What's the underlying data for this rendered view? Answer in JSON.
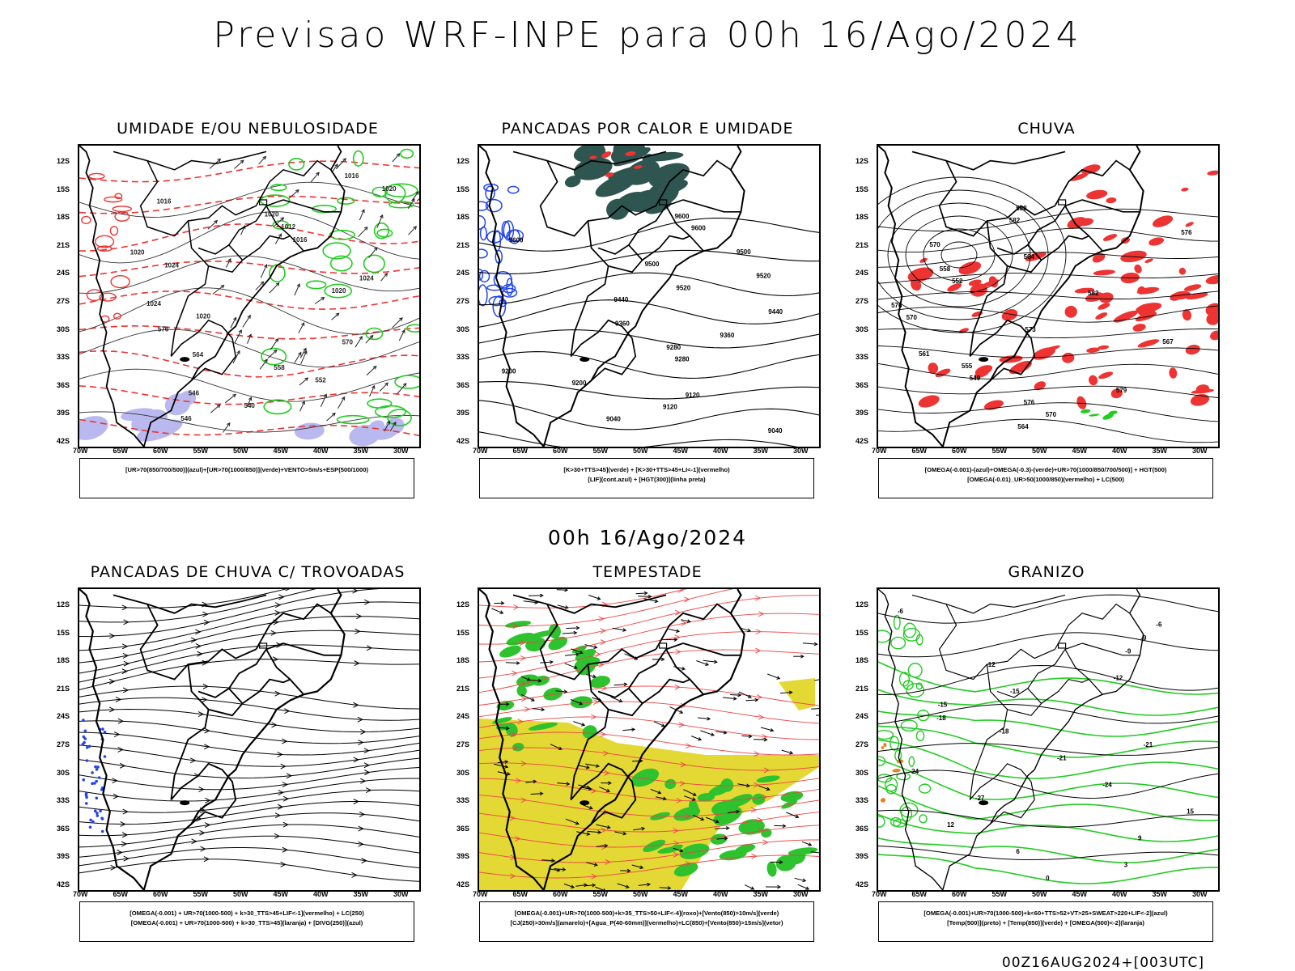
{
  "page": {
    "main_title": "Previsao WRF-INPE  para 00h 16/Ago/2024",
    "mid_title": "00h 16/Ago/2024",
    "footer": "00Z16AUG2024+[003UTC]"
  },
  "axes": {
    "lat_labels": [
      "12S",
      "15S",
      "18S",
      "21S",
      "24S",
      "27S",
      "30S",
      "33S",
      "36S",
      "39S",
      "42S"
    ],
    "lon_labels": [
      "70W",
      "65W",
      "60W",
      "55W",
      "50W",
      "45W",
      "40W",
      "35W",
      "30W"
    ]
  },
  "colors": {
    "black": "#000000",
    "red": "#ee3333",
    "green": "#22cc22",
    "blue": "#2244ee",
    "lavender": "#b9b9ef",
    "darkteal": "#2f5550",
    "yellow": "#e4d835",
    "brightgreen": "#2ec22e",
    "orange": "#e8801f"
  },
  "panels": [
    {
      "id": "umidade",
      "title": "UMIDADE E/OU NEBULOSIDADE",
      "legend": [
        "[UR>70(850/700/500)](azul)+[UR>70(1000/850)](verde)+VENTO>5m/s+ESP(500/1000)"
      ],
      "contour_labels": [
        "1016",
        "1020",
        "1016",
        "1020",
        "1012",
        "1016",
        "1020",
        "1024",
        "1024",
        "1020",
        "1024",
        "1020",
        "576",
        "570",
        "564",
        "558",
        "552",
        "546",
        "540",
        "546"
      ]
    },
    {
      "id": "pancadas-calor",
      "title": "PANCADAS POR CALOR E UMIDADE",
      "legend": [
        "[K>30+TTS>45](verde) + [K>30+TTS>45+LI<-1](vermelho)",
        "[LIF](cont.azul) + [HGT(300)](linha preta)"
      ],
      "contour_labels": [
        "9600",
        "9600",
        "9600",
        "9500",
        "9500",
        "9520",
        "9520",
        "9440",
        "9440",
        "9360",
        "9360",
        "9280",
        "9280",
        "9200",
        "9200",
        "9120",
        "9120",
        "9040",
        "9040"
      ]
    },
    {
      "id": "chuva",
      "title": "CHUVA",
      "legend": [
        "[OMEGA(-0.001)-(azul)+OMEGA(-0.3)-(verde)+UR>70(1000/850/700/500)] + HGT(500)",
        "[OMEGA(-0.01)_UR>50(1000/850)(vermelho) + LC(500)"
      ],
      "contour_labels": [
        "588",
        "582",
        "576",
        "570",
        "564",
        "558",
        "552",
        "582",
        "576",
        "570",
        "573",
        "567",
        "561",
        "555",
        "549",
        "579",
        "576",
        "570",
        "564"
      ]
    },
    {
      "id": "pancadas-trovoadas",
      "title": "PANCADAS DE CHUVA C/ TROVOADAS",
      "legend": [
        "[OMEGA(-0.001) + UR>70(1000-500) + k>30_TTS>45+LIF<-1](vermelho) + LC(250)",
        "[OMEGA(-0.001) + UR>70(1000-500) + k>30_TTS>45](laranja) + [DIVG(250)](azul)"
      ],
      "contour_labels": []
    },
    {
      "id": "tempestade",
      "title": "TEMPESTADE",
      "legend": [
        "[OMEGA(-0.001)+UR>70(1000-500)+k>35_TTS>50+LIF<-4](roxo)+[Vento(850)>10m/s](verde)",
        "[CJ(250)>30m/s](amarelo)+[Agua_P(40-60mm)](vermelho)+LC(850)+[Vento(850)>15m/s](vetor)"
      ],
      "contour_labels": []
    },
    {
      "id": "granizo",
      "title": "GRANIZO",
      "legend": [
        "[OMEGA(-0.001)+UR>70(1000-500)+k<60+TTS>52+VT>25+SWEAT>220+LIF<-2](azul)",
        "[Temp(500)](preto) + [Temp(850)](verde) + [OMEGA(500)<-2](laranja)"
      ],
      "contour_labels": [
        "-6",
        "-6",
        "-9",
        "-9",
        "-12",
        "-12",
        "-15",
        "-15",
        "-18",
        "-18",
        "-21",
        "-21",
        "-24",
        "-24",
        "-27",
        "15",
        "12",
        "9",
        "6",
        "3",
        "0"
      ]
    }
  ]
}
